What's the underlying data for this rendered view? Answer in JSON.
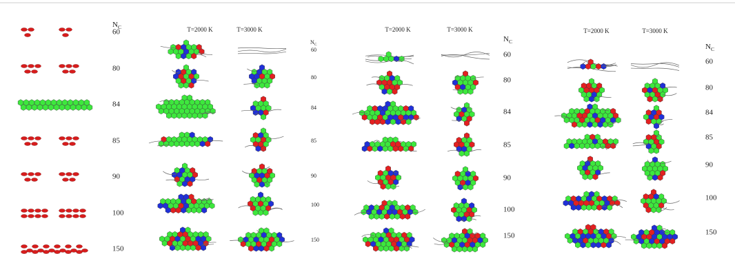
{
  "panels": [
    {
      "nc_label": {
        "main": "N",
        "sub": "C"
      },
      "rows": [
        60,
        80,
        84,
        85,
        90,
        100,
        150
      ]
    },
    {
      "headers": [
        "T=2000 K",
        "T=3000 K"
      ],
      "nc_label": {
        "main": "N",
        "sub": "C"
      },
      "rows": [
        60,
        80,
        84,
        85,
        90,
        100,
        150
      ]
    },
    {
      "headers": [
        "T=2000 K",
        "T=3000 K"
      ],
      "nc_label": {
        "main": "N",
        "sub": "C"
      },
      "rows": [
        60,
        80,
        84,
        85,
        90,
        100,
        150
      ]
    },
    {
      "headers": [
        "T=2000 K",
        "T=3000 K"
      ],
      "nc_label": {
        "main": "N",
        "sub": "C"
      },
      "rows": [
        60,
        80,
        84,
        85,
        90,
        100,
        150
      ]
    }
  ]
}
